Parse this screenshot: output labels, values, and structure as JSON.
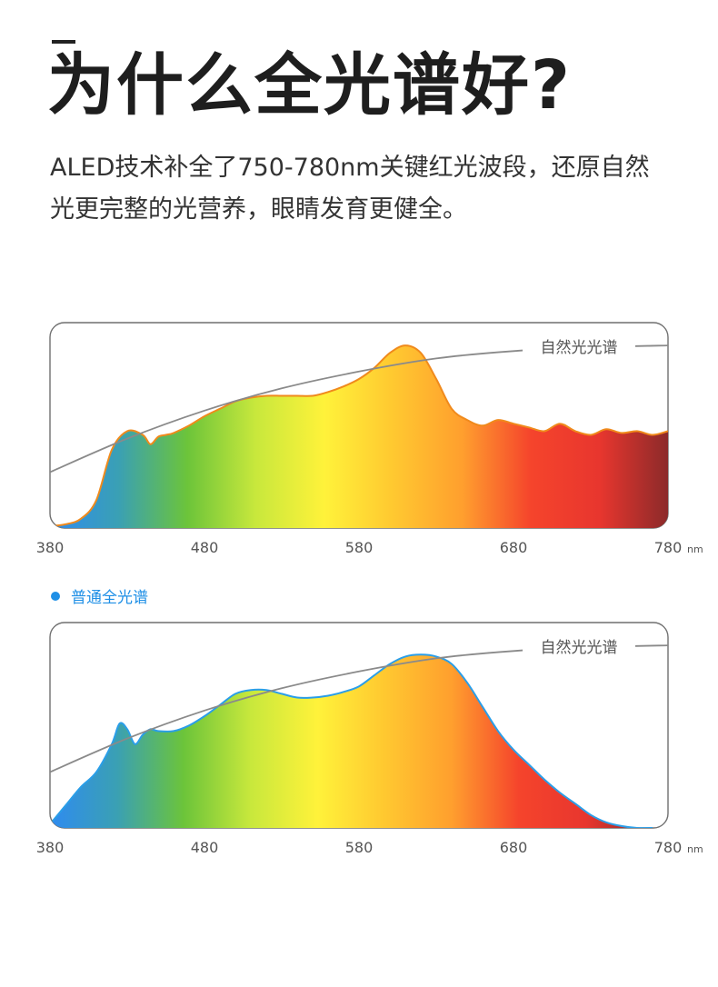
{
  "header": {
    "title": "为什么全光谱好?",
    "desc_line1": "ALED技术补全了750-780nm关键红光波段，还原自然",
    "desc_line2": "光更完整的光营养，眼睛发育更健全。"
  },
  "legend": {
    "label": "普通全光谱",
    "color": "#1e8fe6"
  },
  "colors": {
    "spectrum": [
      "#2f8bf0",
      "#3aa0b4",
      "#6cc43a",
      "#c8e83c",
      "#fff23a",
      "#ffc830",
      "#ff9f2e",
      "#f5442c",
      "#e8362e",
      "#8c2a2a"
    ],
    "natural_curve": "#8a8a8a",
    "aled_stroke": "#f08a1c",
    "normal_stroke": "#2a9ee8"
  },
  "chart_data": [
    {
      "type": "area",
      "x_ticks": [
        "380",
        "480",
        "580",
        "680",
        "780"
      ],
      "x_unit": "nm",
      "xlim": [
        380,
        780
      ],
      "ylim": [
        0,
        100
      ],
      "series": [
        {
          "name": "自然光光谱",
          "x": [
            380,
            430,
            480,
            530,
            580,
            630,
            680,
            730,
            780
          ],
          "y": [
            30,
            48,
            63,
            75,
            84,
            91,
            95,
            97,
            98
          ]
        },
        {
          "x": [
            380,
            390,
            400,
            410,
            420,
            430,
            440,
            445,
            450,
            455,
            460,
            470,
            480,
            490,
            500,
            510,
            520,
            530,
            540,
            550,
            560,
            570,
            580,
            590,
            600,
            610,
            620,
            630,
            640,
            650,
            660,
            670,
            680,
            690,
            700,
            710,
            720,
            730,
            740,
            750,
            760,
            770,
            780
          ],
          "y": [
            1,
            2,
            5,
            15,
            42,
            52,
            50,
            45,
            49,
            50,
            51,
            55,
            60,
            64,
            68,
            70,
            71,
            71,
            71,
            71,
            73,
            76,
            80,
            86,
            94,
            98,
            94,
            80,
            64,
            58,
            55,
            58,
            56,
            54,
            52,
            56,
            52,
            50,
            53,
            51,
            52,
            50,
            52
          ]
        }
      ]
    },
    {
      "type": "area",
      "x_ticks": [
        "380",
        "480",
        "580",
        "680",
        "780"
      ],
      "x_unit": "nm",
      "xlim": [
        380,
        780
      ],
      "ylim": [
        0,
        100
      ],
      "series": [
        {
          "name": "自然光光谱",
          "x": [
            380,
            430,
            480,
            530,
            580,
            630,
            680,
            730,
            780
          ],
          "y": [
            30,
            48,
            63,
            75,
            84,
            91,
            95,
            97,
            98
          ]
        },
        {
          "x": [
            380,
            390,
            400,
            410,
            420,
            425,
            430,
            435,
            440,
            445,
            450,
            460,
            470,
            480,
            490,
            500,
            510,
            520,
            530,
            540,
            550,
            560,
            570,
            580,
            590,
            600,
            610,
            620,
            630,
            640,
            650,
            660,
            670,
            680,
            690,
            700,
            710,
            720,
            730,
            740,
            750,
            760,
            770
          ],
          "y": [
            2,
            12,
            22,
            30,
            45,
            56,
            53,
            45,
            50,
            53,
            52,
            52,
            55,
            60,
            66,
            72,
            74,
            74,
            72,
            70,
            70,
            71,
            73,
            76,
            82,
            88,
            92,
            93,
            92,
            88,
            78,
            65,
            52,
            42,
            34,
            26,
            19,
            13,
            7,
            3,
            1,
            0,
            0
          ]
        }
      ]
    }
  ]
}
